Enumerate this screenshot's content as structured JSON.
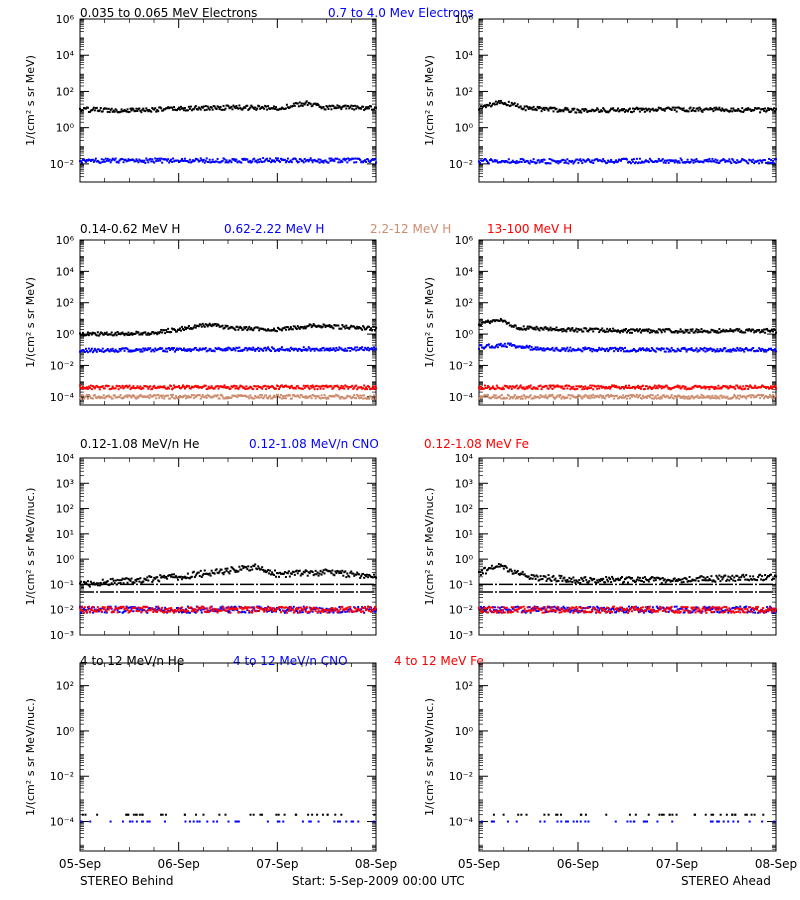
{
  "colors": {
    "black": "#000000",
    "blue": "#0000ff",
    "tan": "#cd8c6e",
    "red": "#ff0000"
  },
  "legends": [
    [
      {
        "text": "0.035 to 0.065 MeV Electrons",
        "color": "#000000"
      },
      {
        "text": "0.7 to 4.0 Mev Electrons",
        "color": "#0000ff"
      }
    ],
    [
      {
        "text": "0.14-0.62 MeV H",
        "color": "#000000"
      },
      {
        "text": "0.62-2.22 MeV H",
        "color": "#0000ff"
      },
      {
        "text": "2.2-12 MeV H",
        "color": "#cd8c6e"
      },
      {
        "text": "13-100 MeV H",
        "color": "#ff0000"
      }
    ],
    [
      {
        "text": "0.12-1.08 MeV/n He",
        "color": "#000000"
      },
      {
        "text": "0.12-1.08 MeV/n CNO",
        "color": "#0000ff"
      },
      {
        "text": "0.12-1.08 MeV Fe",
        "color": "#ff0000"
      }
    ],
    [
      {
        "text": "4 to 12 MeV/n He",
        "color": "#000000"
      },
      {
        "text": "4 to 12 MeV/n CNO",
        "color": "#0000ff"
      },
      {
        "text": "4 to 12 MeV Fe",
        "color": "#ff0000"
      }
    ]
  ],
  "footer": {
    "left": "STEREO Behind",
    "center": "Start:  5-Sep-2009 00:00 UTC",
    "right": "STEREO Ahead"
  },
  "chart_data": [
    {
      "type": "scatter",
      "row": 0,
      "spacecraft": "STEREO Behind",
      "ylabel": "1/(cm² s sr MeV)",
      "yscale": "log",
      "ylim": [
        0.001,
        1000000
      ],
      "yticks": [
        "10⁻²",
        "10⁰",
        "10²",
        "10⁴",
        "10⁶"
      ],
      "xticks": [
        "05-Sep",
        "06-Sep",
        "07-Sep",
        "08-Sep"
      ],
      "series": [
        {
          "name": "0.035 to 0.065 MeV Electrons",
          "color": "#000000",
          "x": [
            0,
            0.5,
            1.0,
            1.5,
            2.0,
            2.3,
            2.5,
            3.0
          ],
          "y": [
            10,
            9,
            11,
            13,
            12,
            22,
            13,
            12
          ]
        },
        {
          "name": "0.7 to 4.0 Mev Electrons",
          "color": "#0000ff",
          "x": [
            0,
            1,
            2,
            3
          ],
          "y": [
            0.015,
            0.015,
            0.016,
            0.015
          ]
        }
      ]
    },
    {
      "type": "scatter",
      "row": 0,
      "spacecraft": "STEREO Ahead",
      "ylabel": "1/(cm² s sr MeV)",
      "yscale": "log",
      "ylim": [
        0.001,
        1000000
      ],
      "yticks": [
        "10⁻²",
        "10⁰",
        "10²",
        "10⁴",
        "10⁶"
      ],
      "xticks": [
        "05-Sep",
        "06-Sep",
        "07-Sep",
        "08-Sep"
      ],
      "series": [
        {
          "name": "0.035 to 0.065 MeV Electrons",
          "color": "#000000",
          "x": [
            0,
            0.2,
            0.5,
            1.0,
            2.0,
            3.0
          ],
          "y": [
            12,
            28,
            11,
            9,
            10,
            9
          ]
        },
        {
          "name": "0.7 to 4.0 Mev Electrons",
          "color": "#0000ff",
          "x": [
            0,
            1,
            2,
            3
          ],
          "y": [
            0.014,
            0.014,
            0.015,
            0.014
          ]
        }
      ]
    },
    {
      "type": "scatter",
      "row": 1,
      "spacecraft": "STEREO Behind",
      "ylabel": "1/(cm² s sr MeV)",
      "yscale": "log",
      "ylim": [
        3e-05,
        1000000
      ],
      "yticks": [
        "10⁻⁴",
        "10⁻²",
        "10⁰",
        "10²",
        "10⁴",
        "10⁶"
      ],
      "xticks": [
        "05-Sep",
        "06-Sep",
        "07-Sep",
        "08-Sep"
      ],
      "series": [
        {
          "name": "0.14-0.62 MeV H",
          "color": "#000000",
          "x": [
            0,
            0.7,
            1.0,
            1.3,
            1.5,
            2.0,
            2.4,
            3.0
          ],
          "y": [
            1.0,
            1.1,
            2.0,
            4.0,
            2.5,
            2.0,
            3.5,
            2.2
          ]
        },
        {
          "name": "0.62-2.22 MeV H",
          "color": "#0000ff",
          "x": [
            0,
            1,
            2,
            3
          ],
          "y": [
            0.09,
            0.1,
            0.11,
            0.11
          ]
        },
        {
          "name": "2.2-12 MeV H",
          "color": "#cd8c6e",
          "x": [
            0,
            1,
            2,
            3
          ],
          "y": [
            0.0001,
            0.0001,
            0.0001,
            0.0001
          ]
        },
        {
          "name": "13-100 MeV H",
          "color": "#ff0000",
          "x": [
            0,
            1,
            2,
            3
          ],
          "y": [
            0.0004,
            0.0004,
            0.0004,
            0.0004
          ]
        }
      ]
    },
    {
      "type": "scatter",
      "row": 1,
      "spacecraft": "STEREO Ahead",
      "ylabel": "1/(cm² s sr MeV)",
      "yscale": "log",
      "ylim": [
        3e-05,
        1000000
      ],
      "yticks": [
        "10⁻⁴",
        "10⁻²",
        "10⁰",
        "10²",
        "10⁴",
        "10⁶"
      ],
      "xticks": [
        "05-Sep",
        "06-Sep",
        "07-Sep",
        "08-Sep"
      ],
      "series": [
        {
          "name": "0.14-0.62 MeV H",
          "color": "#000000",
          "x": [
            0,
            0.2,
            0.4,
            0.8,
            1.5,
            3.0
          ],
          "y": [
            4,
            8,
            2.5,
            2.0,
            1.6,
            1.6
          ]
        },
        {
          "name": "0.62-2.22 MeV H",
          "color": "#0000ff",
          "x": [
            0,
            0.3,
            0.6,
            1.5,
            3.0
          ],
          "y": [
            0.15,
            0.2,
            0.11,
            0.1,
            0.1
          ]
        },
        {
          "name": "2.2-12 MeV H",
          "color": "#cd8c6e",
          "x": [
            0,
            1,
            2,
            3
          ],
          "y": [
            0.0001,
            0.0001,
            0.0001,
            0.0001
          ]
        },
        {
          "name": "13-100 MeV H",
          "color": "#ff0000",
          "x": [
            0,
            1,
            2,
            3
          ],
          "y": [
            0.0004,
            0.0004,
            0.0004,
            0.0004
          ]
        }
      ]
    },
    {
      "type": "scatter",
      "row": 2,
      "spacecraft": "STEREO Behind",
      "ylabel": "1/(cm² s sr MeV/nuc.)",
      "yscale": "log",
      "ylim": [
        0.001,
        10000
      ],
      "yticks": [
        "10⁻³",
        "10⁻²",
        "10⁻¹",
        "10⁰",
        "10¹",
        "10²",
        "10³",
        "10⁴"
      ],
      "xticks": [
        "05-Sep",
        "06-Sep",
        "07-Sep",
        "08-Sep"
      ],
      "series": [
        {
          "name": "0.12-1.08 MeV/n He",
          "color": "#000000",
          "x": [
            0,
            1,
            1.8,
            2.0,
            2.5,
            3.0
          ],
          "y": [
            0.1,
            0.2,
            0.5,
            0.25,
            0.3,
            0.2
          ],
          "baseline": [
            0.1,
            0.05
          ]
        },
        {
          "name": "0.12-1.08 MeV/n CNO",
          "color": "#0000ff",
          "x": [
            0,
            1,
            2,
            3
          ],
          "y": [
            0.01,
            0.01,
            0.01,
            0.01
          ]
        },
        {
          "name": "0.12-1.08 MeV Fe",
          "color": "#ff0000",
          "x": [
            0,
            1,
            2,
            3
          ],
          "y": [
            0.01,
            0.01,
            0.01,
            0.01
          ]
        }
      ]
    },
    {
      "type": "scatter",
      "row": 2,
      "spacecraft": "STEREO Ahead",
      "ylabel": "1/(cm² s sr MeV/nuc.)",
      "yscale": "log",
      "ylim": [
        0.001,
        10000
      ],
      "yticks": [
        "10⁻³",
        "10⁻²",
        "10⁻¹",
        "10⁰",
        "10¹",
        "10²",
        "10³",
        "10⁴"
      ],
      "xticks": [
        "05-Sep",
        "06-Sep",
        "07-Sep",
        "08-Sep"
      ],
      "series": [
        {
          "name": "0.12-1.08 MeV/n He",
          "color": "#000000",
          "x": [
            0,
            0.2,
            0.5,
            1.0,
            2.0,
            3.0
          ],
          "y": [
            0.3,
            0.5,
            0.2,
            0.15,
            0.15,
            0.2
          ],
          "baseline": [
            0.1,
            0.05
          ]
        },
        {
          "name": "0.12-1.08 MeV/n CNO",
          "color": "#0000ff",
          "x": [
            0,
            1,
            2,
            3
          ],
          "y": [
            0.01,
            0.01,
            0.01,
            0.01
          ]
        },
        {
          "name": "0.12-1.08 MeV Fe",
          "color": "#ff0000",
          "x": [
            0,
            1,
            2,
            3
          ],
          "y": [
            0.01,
            0.01,
            0.01,
            0.01
          ]
        }
      ]
    },
    {
      "type": "scatter",
      "row": 3,
      "spacecraft": "STEREO Behind",
      "ylabel": "1/(cm² s sr MeV/nuc.)",
      "yscale": "log",
      "ylim": [
        5e-06,
        1000
      ],
      "yticks": [
        "10⁻⁴",
        "10⁻²",
        "10⁰",
        "10²"
      ],
      "xticks": [
        "05-Sep",
        "06-Sep",
        "07-Sep",
        "08-Sep"
      ],
      "series": [
        {
          "name": "4 to 12 MeV/n He",
          "color": "#000000",
          "x": [
            0,
            1,
            2,
            3
          ],
          "y": [
            0.0002,
            0.0002,
            0.0002,
            0.0002
          ]
        },
        {
          "name": "4 to 12 MeV/n CNO",
          "color": "#0000ff",
          "x": [
            0,
            1,
            2,
            3
          ],
          "y": [
            0.0001,
            0.0001,
            0.0001,
            0.0001
          ]
        },
        {
          "name": "4 to 12 MeV Fe",
          "color": "#ff0000",
          "x": [],
          "y": []
        }
      ]
    },
    {
      "type": "scatter",
      "row": 3,
      "spacecraft": "STEREO Ahead",
      "ylabel": "1/(cm² s sr MeV/nuc.)",
      "yscale": "log",
      "ylim": [
        5e-06,
        1000
      ],
      "yticks": [
        "10⁻⁴",
        "10⁻²",
        "10⁰",
        "10²"
      ],
      "xticks": [
        "05-Sep",
        "06-Sep",
        "07-Sep",
        "08-Sep"
      ],
      "series": [
        {
          "name": "4 to 12 MeV/n He",
          "color": "#000000",
          "x": [
            0,
            1,
            2,
            3
          ],
          "y": [
            0.0002,
            0.0002,
            0.0002,
            0.0002
          ]
        },
        {
          "name": "4 to 12 MeV/n CNO",
          "color": "#0000ff",
          "x": [
            0,
            1,
            2,
            3
          ],
          "y": [
            0.0001,
            0.0001,
            0.0001,
            0.0001
          ]
        },
        {
          "name": "4 to 12 MeV Fe",
          "color": "#ff0000",
          "x": [],
          "y": []
        }
      ]
    }
  ]
}
